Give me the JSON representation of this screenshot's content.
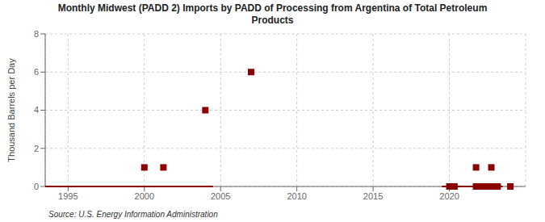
{
  "chart_data": {
    "type": "scatter",
    "title": "Monthly Midwest (PADD 2) Imports by PADD of Processing from Argentina of Total Petroleum\nProducts",
    "ylabel": "Thousand Barrels per Day",
    "annotations": [
      "Source: U.S. Energy Information Administration"
    ],
    "xlim": [
      1993.5,
      2025
    ],
    "ylim": [
      0,
      8
    ],
    "xticks": [
      1995,
      2000,
      2005,
      2010,
      2015,
      2020
    ],
    "yticks": [
      0,
      2,
      4,
      6,
      8
    ],
    "grid": true,
    "series": [
      {
        "type": "line",
        "color": "#8b0000",
        "x": [
          1993.5,
          2004.5
        ],
        "values": [
          0,
          0
        ]
      },
      {
        "type": "line",
        "color": "#8b0000",
        "x": [
          2019.5,
          2023.5
        ],
        "values": [
          0,
          0
        ]
      },
      {
        "type": "scatter",
        "marker": "square",
        "color": "#8b0000",
        "x": [
          2000.0,
          2001.25,
          2004.0,
          2007.0,
          2021.75,
          2022.75
        ],
        "values": [
          1,
          1,
          4,
          6,
          1,
          1
        ]
      },
      {
        "type": "scatter",
        "marker": "square",
        "color": "#8b0000",
        "x": [
          2020.0,
          2020.083,
          2020.167,
          2020.25,
          2020.333,
          2021.75,
          2021.833,
          2021.917,
          2022.0,
          2022.083,
          2022.167,
          2022.25,
          2022.333,
          2022.417,
          2022.5,
          2022.583,
          2022.667,
          2022.75,
          2022.833,
          2022.917,
          2023.0,
          2023.083,
          2023.167,
          2024.0
        ],
        "values": [
          0,
          0,
          0,
          0,
          0,
          0,
          0,
          0,
          0,
          0,
          0,
          0,
          0,
          0,
          0,
          0,
          0,
          0,
          0,
          0,
          0,
          0,
          0,
          0
        ]
      }
    ]
  }
}
